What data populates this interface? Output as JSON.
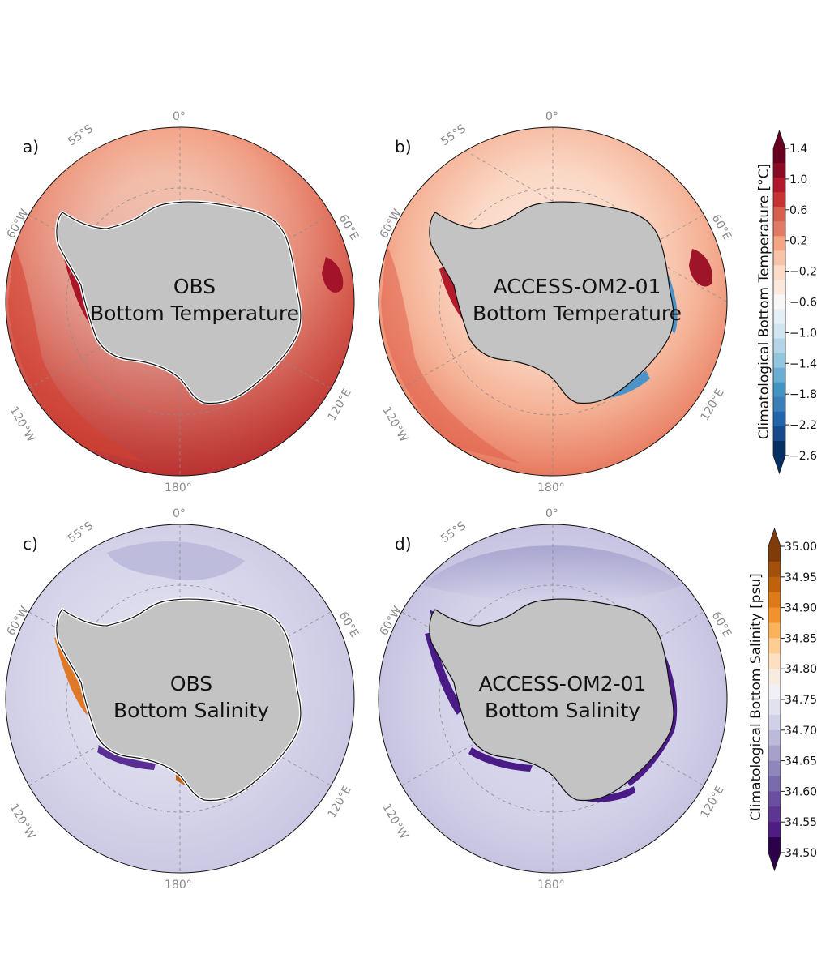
{
  "panels": [
    {
      "letter": "a)",
      "line1": "OBS",
      "line2": "Bottom Temperature",
      "variable": "temperature",
      "source": "obs"
    },
    {
      "letter": "b)",
      "line1": "ACCESS-OM2-01",
      "line2": "Bottom Temperature",
      "variable": "temperature",
      "source": "model"
    },
    {
      "letter": "c)",
      "line1": "OBS",
      "line2": "Bottom Salinity",
      "variable": "salinity",
      "source": "obs"
    },
    {
      "letter": "d)",
      "line1": "ACCESS-OM2-01",
      "line2": "Bottom Salinity",
      "variable": "salinity",
      "source": "model"
    }
  ],
  "map_labels": {
    "lon_0": "0°",
    "lon_180": "180°",
    "lon_60w": "60°W",
    "lon_60e": "60°E",
    "lon_120w": "120°W",
    "lon_120e": "120°E",
    "lat_55s": "55°S"
  },
  "colorbars": {
    "temperature": {
      "label": "Climatological Bottom Temperature [°C]",
      "ticks": [
        "1.4",
        "1.0",
        "0.6",
        "0.2",
        "−0.2",
        "−0.6",
        "−1.0",
        "−1.4",
        "−1.8",
        "−2.2",
        "−2.6"
      ],
      "colors": [
        "#67001f",
        "#8b0a23",
        "#b2182b",
        "#c73232",
        "#d6604d",
        "#e27b66",
        "#f4a582",
        "#f8c3a8",
        "#fddbc7",
        "#fbe7dc",
        "#f7f7f7",
        "#e3eef6",
        "#d1e5f0",
        "#b4d5e8",
        "#92c5de",
        "#6aaed6",
        "#4393c3",
        "#3a7fba",
        "#2166ac",
        "#174a8a",
        "#053061"
      ],
      "colors_order": "top-to-bottom"
    },
    "salinity": {
      "label": "Climatological Bottom Salinity [psu]",
      "ticks": [
        "35.00",
        "34.95",
        "34.90",
        "34.85",
        "34.80",
        "34.75",
        "34.70",
        "34.65",
        "34.60",
        "34.55",
        "34.50"
      ],
      "colors": [
        "#7f3b08",
        "#a2500b",
        "#c0620d",
        "#dd7a19",
        "#f0932f",
        "#fbb25d",
        "#fdcd91",
        "#fde0c0",
        "#f7ecdf",
        "#f2f0f5",
        "#e2e2ef",
        "#d0d0e6",
        "#bcbad9",
        "#a5a1cb",
        "#8e86bd",
        "#7a6aae",
        "#6a4fa0",
        "#5d3592",
        "#4f1c85",
        "#2d004b"
      ],
      "colors_order": "top-to-bottom"
    }
  },
  "theme": {
    "land": "#c3c3c3",
    "coast": "#111111",
    "grid": "#8a8a8a"
  }
}
